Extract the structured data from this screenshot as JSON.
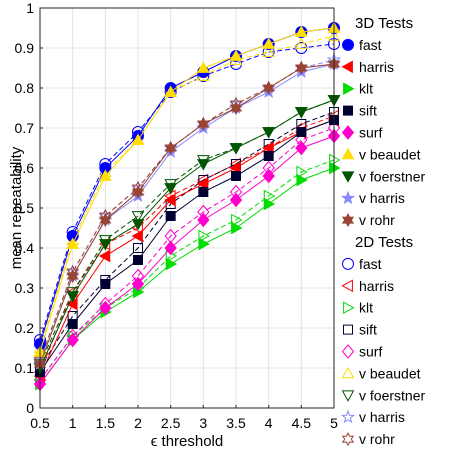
{
  "chart_data": {
    "type": "line",
    "xlabel": "ϵ threshold",
    "ylabel": "mean repeatability",
    "xlim": [
      0.5,
      5
    ],
    "ylim": [
      0,
      1
    ],
    "x": [
      0.5,
      1,
      1.5,
      2,
      2.5,
      3,
      3.5,
      4,
      4.5,
      5
    ],
    "xticks": [
      "0.5",
      "1",
      "1.5",
      "2",
      "2.5",
      "3",
      "3.5",
      "4",
      "4.5",
      "5"
    ],
    "yticks": [
      "0",
      "0.1",
      "0.2",
      "0.3",
      "0.4",
      "0.5",
      "0.6",
      "0.7",
      "0.8",
      "0.9",
      "1"
    ],
    "grid": true,
    "legend_position": "outside-right",
    "groups": [
      {
        "title": "3D Tests",
        "line_style": "solid",
        "filled": true,
        "series": [
          {
            "name": "fast",
            "color": "#0000ff",
            "marker": "circle",
            "values": [
              0.16,
              0.43,
              0.6,
              0.68,
              0.8,
              0.84,
              0.88,
              0.91,
              0.94,
              0.95
            ]
          },
          {
            "name": "harris",
            "color": "#ff0000",
            "marker": "triangle-left",
            "values": [
              0.08,
              0.26,
              0.38,
              0.43,
              0.52,
              0.56,
              0.6,
              0.65,
              0.69,
              0.72
            ]
          },
          {
            "name": "klt",
            "color": "#00dd00",
            "marker": "triangle-right",
            "values": [
              0.06,
              0.17,
              0.24,
              0.29,
              0.36,
              0.41,
              0.45,
              0.51,
              0.57,
              0.6
            ]
          },
          {
            "name": "sift",
            "color": "#000033",
            "marker": "square",
            "values": [
              0.09,
              0.21,
              0.31,
              0.37,
              0.48,
              0.54,
              0.58,
              0.63,
              0.69,
              0.72
            ]
          },
          {
            "name": "surf",
            "color": "#ff00cc",
            "marker": "diamond",
            "values": [
              0.06,
              0.17,
              0.25,
              0.31,
              0.4,
              0.47,
              0.52,
              0.58,
              0.65,
              0.68
            ]
          },
          {
            "name": "v beaudet",
            "color": "#ffdd00",
            "marker": "triangle-up",
            "values": [
              0.14,
              0.41,
              0.58,
              0.67,
              0.79,
              0.85,
              0.88,
              0.91,
              0.94,
              0.95
            ]
          },
          {
            "name": "v foerstner",
            "color": "#005500",
            "marker": "triangle-down",
            "values": [
              0.1,
              0.28,
              0.41,
              0.46,
              0.55,
              0.61,
              0.65,
              0.69,
              0.74,
              0.77
            ]
          },
          {
            "name": "v harris",
            "color": "#8888ff",
            "marker": "star",
            "values": [
              0.11,
              0.33,
              0.47,
              0.53,
              0.64,
              0.7,
              0.75,
              0.79,
              0.84,
              0.86
            ]
          },
          {
            "name": "v rohr",
            "color": "#994433",
            "marker": "hexagram",
            "values": [
              0.11,
              0.33,
              0.47,
              0.54,
              0.65,
              0.71,
              0.75,
              0.8,
              0.85,
              0.86
            ]
          }
        ]
      },
      {
        "title": "2D Tests",
        "line_style": "dashed",
        "filled": false,
        "series": [
          {
            "name": "fast",
            "color": "#0000ff",
            "marker": "circle",
            "values": [
              0.17,
              0.44,
              0.61,
              0.69,
              0.79,
              0.83,
              0.86,
              0.89,
              0.9,
              0.91
            ]
          },
          {
            "name": "harris",
            "color": "#ff0000",
            "marker": "triangle-left",
            "values": [
              0.09,
              0.29,
              0.41,
              0.45,
              0.53,
              0.57,
              0.61,
              0.65,
              0.7,
              0.73
            ]
          },
          {
            "name": "klt",
            "color": "#00dd00",
            "marker": "triangle-right",
            "values": [
              0.07,
              0.18,
              0.25,
              0.3,
              0.38,
              0.43,
              0.47,
              0.53,
              0.59,
              0.62
            ]
          },
          {
            "name": "sift",
            "color": "#000033",
            "marker": "square",
            "values": [
              0.1,
              0.23,
              0.32,
              0.4,
              0.51,
              0.57,
              0.61,
              0.66,
              0.71,
              0.74
            ]
          },
          {
            "name": "surf",
            "color": "#ff00cc",
            "marker": "diamond",
            "values": [
              0.07,
              0.18,
              0.26,
              0.33,
              0.43,
              0.49,
              0.54,
              0.6,
              0.67,
              0.7
            ]
          },
          {
            "name": "v beaudet",
            "color": "#ffdd00",
            "marker": "triangle-up",
            "values": [
              0.15,
              0.42,
              0.59,
              0.67,
              0.79,
              0.83,
              0.87,
              0.89,
              0.91,
              0.93
            ]
          },
          {
            "name": "v foerstner",
            "color": "#005500",
            "marker": "triangle-down",
            "values": [
              0.11,
              0.29,
              0.42,
              0.48,
              0.56,
              0.62,
              0.65,
              0.69,
              0.74,
              0.77
            ]
          },
          {
            "name": "v harris",
            "color": "#8888ff",
            "marker": "star",
            "values": [
              0.12,
              0.34,
              0.48,
              0.55,
              0.65,
              0.71,
              0.76,
              0.8,
              0.85,
              0.87
            ]
          },
          {
            "name": "v rohr",
            "color": "#994433",
            "marker": "hexagram",
            "values": [
              0.12,
              0.34,
              0.48,
              0.55,
              0.65,
              0.71,
              0.76,
              0.8,
              0.85,
              0.86
            ]
          }
        ]
      }
    ]
  }
}
